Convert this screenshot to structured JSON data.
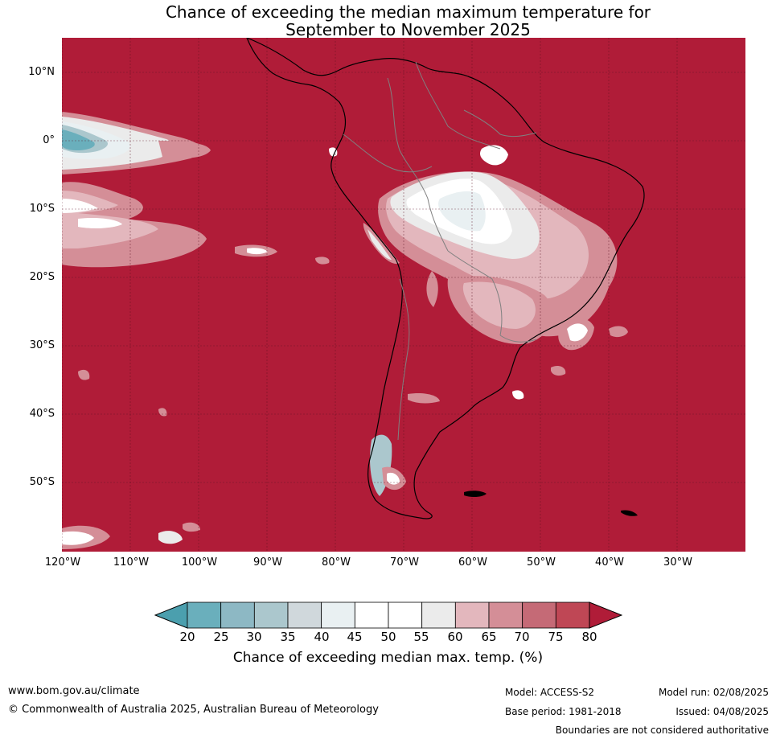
{
  "title": {
    "line1": "Chance of exceeding the median maximum temperature for",
    "line2": "September to November 2025"
  },
  "map": {
    "lat_labels": [
      "10°N",
      "0°",
      "10°S",
      "20°S",
      "30°S",
      "40°S",
      "50°S"
    ],
    "lon_labels": [
      "120°W",
      "110°W",
      "100°W",
      "90°W",
      "80°W",
      "70°W",
      "60°W",
      "50°W",
      "40°W",
      "30°W"
    ],
    "background_color": "#b01c38"
  },
  "colorbar": {
    "ticks": [
      "20",
      "25",
      "30",
      "35",
      "40",
      "45",
      "50",
      "55",
      "60",
      "65",
      "70",
      "75",
      "80"
    ],
    "colors": [
      "#4b9fae",
      "#6aafbc",
      "#8db8c4",
      "#abc7cd",
      "#d0d8dc",
      "#e9f0f2",
      "#ffffff",
      "#ffffff",
      "#ebebeb",
      "#e3b7bd",
      "#d48e97",
      "#c56a76",
      "#bf4755",
      "#b01c38"
    ],
    "label": "Chance of exceeding median max. temp. (%)"
  },
  "footer": {
    "website": "www.bom.gov.au/climate",
    "copyright": "© Commonwealth of Australia 2025, Australian Bureau of Meteorology",
    "model": "Model: ACCESS-S2",
    "base_period": "Base period: 1981-2018",
    "model_run": "Model run: 02/08/2025",
    "issued": "Issued: 04/08/2025",
    "disclaimer": "Boundaries are not considered authoritative"
  }
}
